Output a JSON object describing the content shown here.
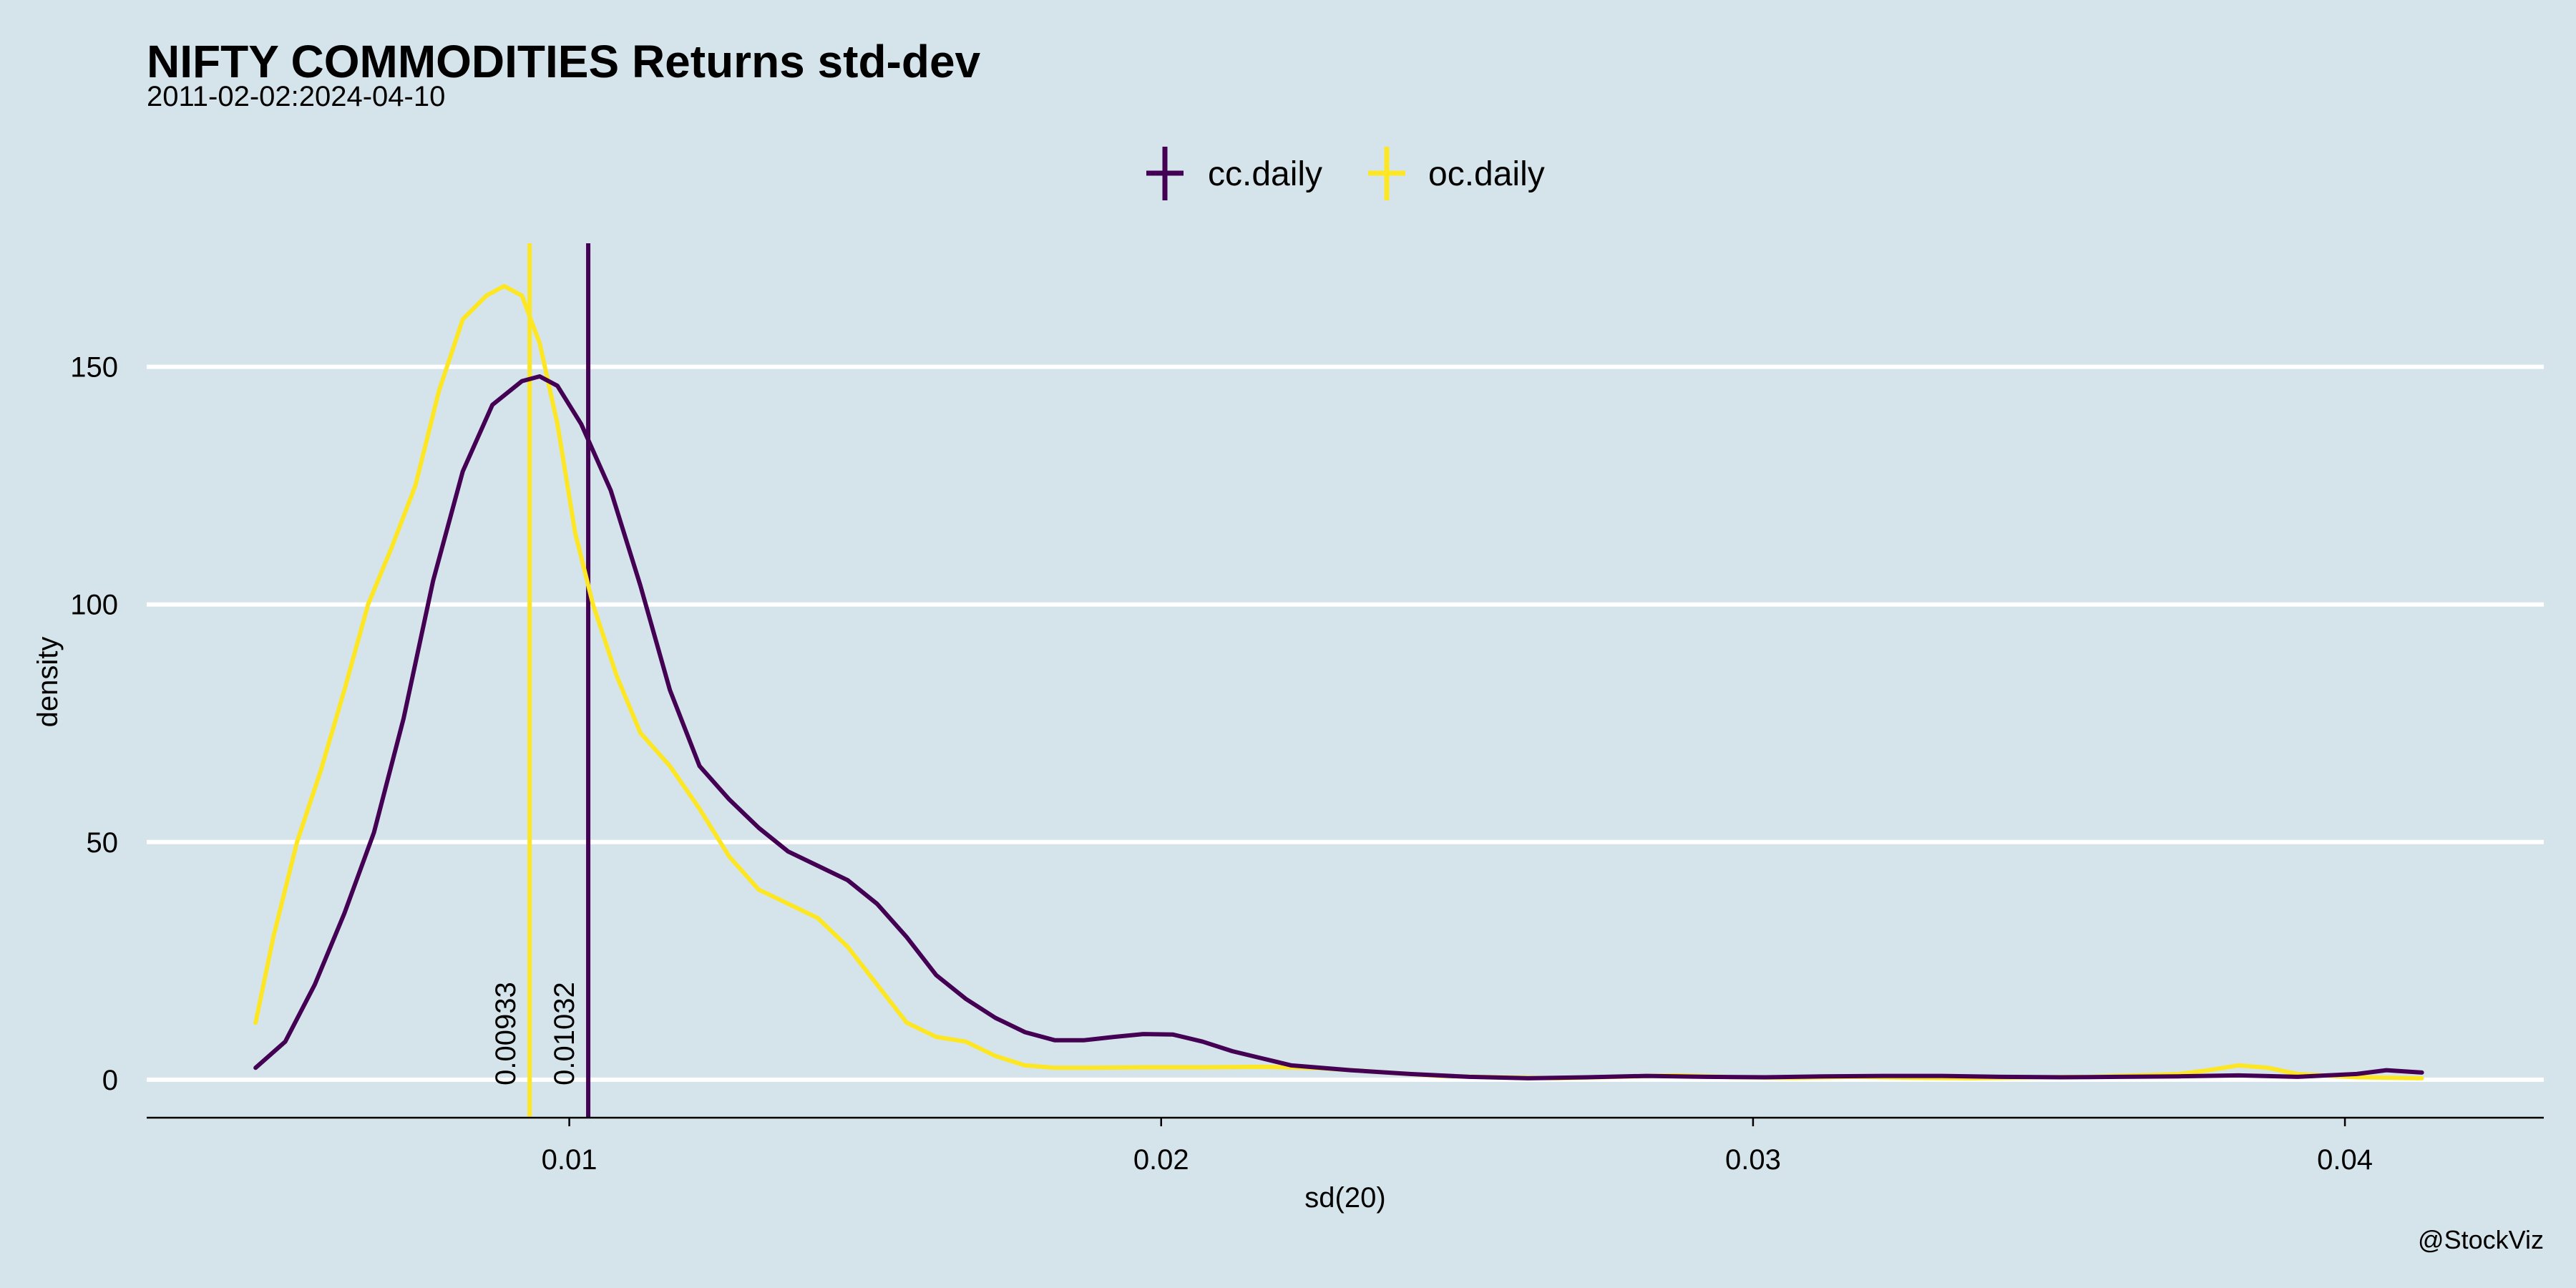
{
  "colors": {
    "background": "#d5e4eb",
    "grid": "#ffffff",
    "cc_daily": "#440154",
    "oc_daily": "#fde725"
  },
  "chart_data": {
    "type": "line",
    "title": "NIFTY COMMODITIES Returns std-dev",
    "subtitle": "2011-02-02:2024-04-10",
    "xlabel": "sd(20)",
    "ylabel": "density",
    "caption": "@StockViz",
    "xlim": [
      0.00286,
      0.04336
    ],
    "ylim": [
      -8,
      176
    ],
    "x_ticks": [
      0.01,
      0.02,
      0.03,
      0.04
    ],
    "x_tick_labels": [
      "0.01",
      "0.02",
      "0.03",
      "0.04"
    ],
    "y_ticks": [
      0,
      50,
      100,
      150
    ],
    "y_tick_labels": [
      "0",
      "50",
      "100",
      "150"
    ],
    "grid": "horizontal-major",
    "legend_position": "top",
    "series": [
      {
        "name": "cc.daily",
        "color": "#440154",
        "mean": 0.01032,
        "mean_label": "0.01032",
        "x": [
          0.0047,
          0.0052,
          0.0057,
          0.0062,
          0.0067,
          0.0072,
          0.0077,
          0.0082,
          0.0087,
          0.0092,
          0.0095,
          0.0098,
          0.0102,
          0.0107,
          0.0112,
          0.0117,
          0.0122,
          0.0127,
          0.0132,
          0.0137,
          0.0142,
          0.0147,
          0.0152,
          0.0157,
          0.0162,
          0.0167,
          0.0172,
          0.0177,
          0.0182,
          0.0187,
          0.0192,
          0.0197,
          0.0202,
          0.0207,
          0.0212,
          0.0217,
          0.0222,
          0.0232,
          0.0242,
          0.0252,
          0.0262,
          0.0272,
          0.0282,
          0.0292,
          0.0302,
          0.0312,
          0.0322,
          0.0332,
          0.0342,
          0.0352,
          0.0362,
          0.0372,
          0.0382,
          0.0392,
          0.0402,
          0.0407,
          0.0413
        ],
        "y": [
          2.5,
          8,
          20,
          35,
          52,
          76,
          105,
          128,
          142,
          147,
          148,
          146,
          138,
          124,
          104,
          82,
          66,
          59,
          53,
          48,
          45,
          42,
          37,
          30,
          22,
          17,
          13,
          10,
          8.3,
          8.3,
          9,
          9.6,
          9.5,
          8,
          6,
          4.5,
          3,
          2,
          1.2,
          0.6,
          0.3,
          0.5,
          0.8,
          0.6,
          0.5,
          0.7,
          0.8,
          0.8,
          0.6,
          0.5,
          0.6,
          0.7,
          0.9,
          0.6,
          1.2,
          2,
          1.5
        ]
      },
      {
        "name": "oc.daily",
        "color": "#fde725",
        "mean": 0.00933,
        "mean_label": "0.00933",
        "x": [
          0.0047,
          0.005,
          0.0054,
          0.0058,
          0.0062,
          0.0066,
          0.007,
          0.0074,
          0.0078,
          0.0082,
          0.0086,
          0.0089,
          0.0092,
          0.0095,
          0.0098,
          0.0101,
          0.0104,
          0.0108,
          0.0112,
          0.0117,
          0.0122,
          0.0127,
          0.0132,
          0.0137,
          0.0142,
          0.0147,
          0.0152,
          0.0157,
          0.0162,
          0.0167,
          0.0172,
          0.0177,
          0.0182,
          0.0187,
          0.0197,
          0.0207,
          0.0217,
          0.0227,
          0.0237,
          0.0247,
          0.0257,
          0.0267,
          0.0277,
          0.0287,
          0.0297,
          0.0307,
          0.0317,
          0.0327,
          0.0337,
          0.0347,
          0.0357,
          0.0367,
          0.0372,
          0.0377,
          0.0382,
          0.0387,
          0.0392,
          0.0402,
          0.0413
        ],
        "y": [
          12,
          30,
          50,
          65,
          82,
          100,
          112,
          125,
          145,
          160,
          165,
          167,
          165,
          155,
          138,
          115,
          100,
          85,
          73,
          66,
          57,
          47,
          40,
          37,
          34,
          28,
          20,
          12,
          9,
          8,
          5,
          3,
          2.5,
          2.5,
          2.6,
          2.6,
          2.7,
          2.4,
          1.6,
          0.8,
          0.5,
          0.3,
          0.6,
          0.9,
          0.5,
          0.4,
          0.6,
          0.4,
          0.3,
          0.5,
          0.6,
          1,
          1.2,
          2,
          3,
          2.5,
          1.2,
          0.5,
          0.3
        ]
      }
    ]
  }
}
